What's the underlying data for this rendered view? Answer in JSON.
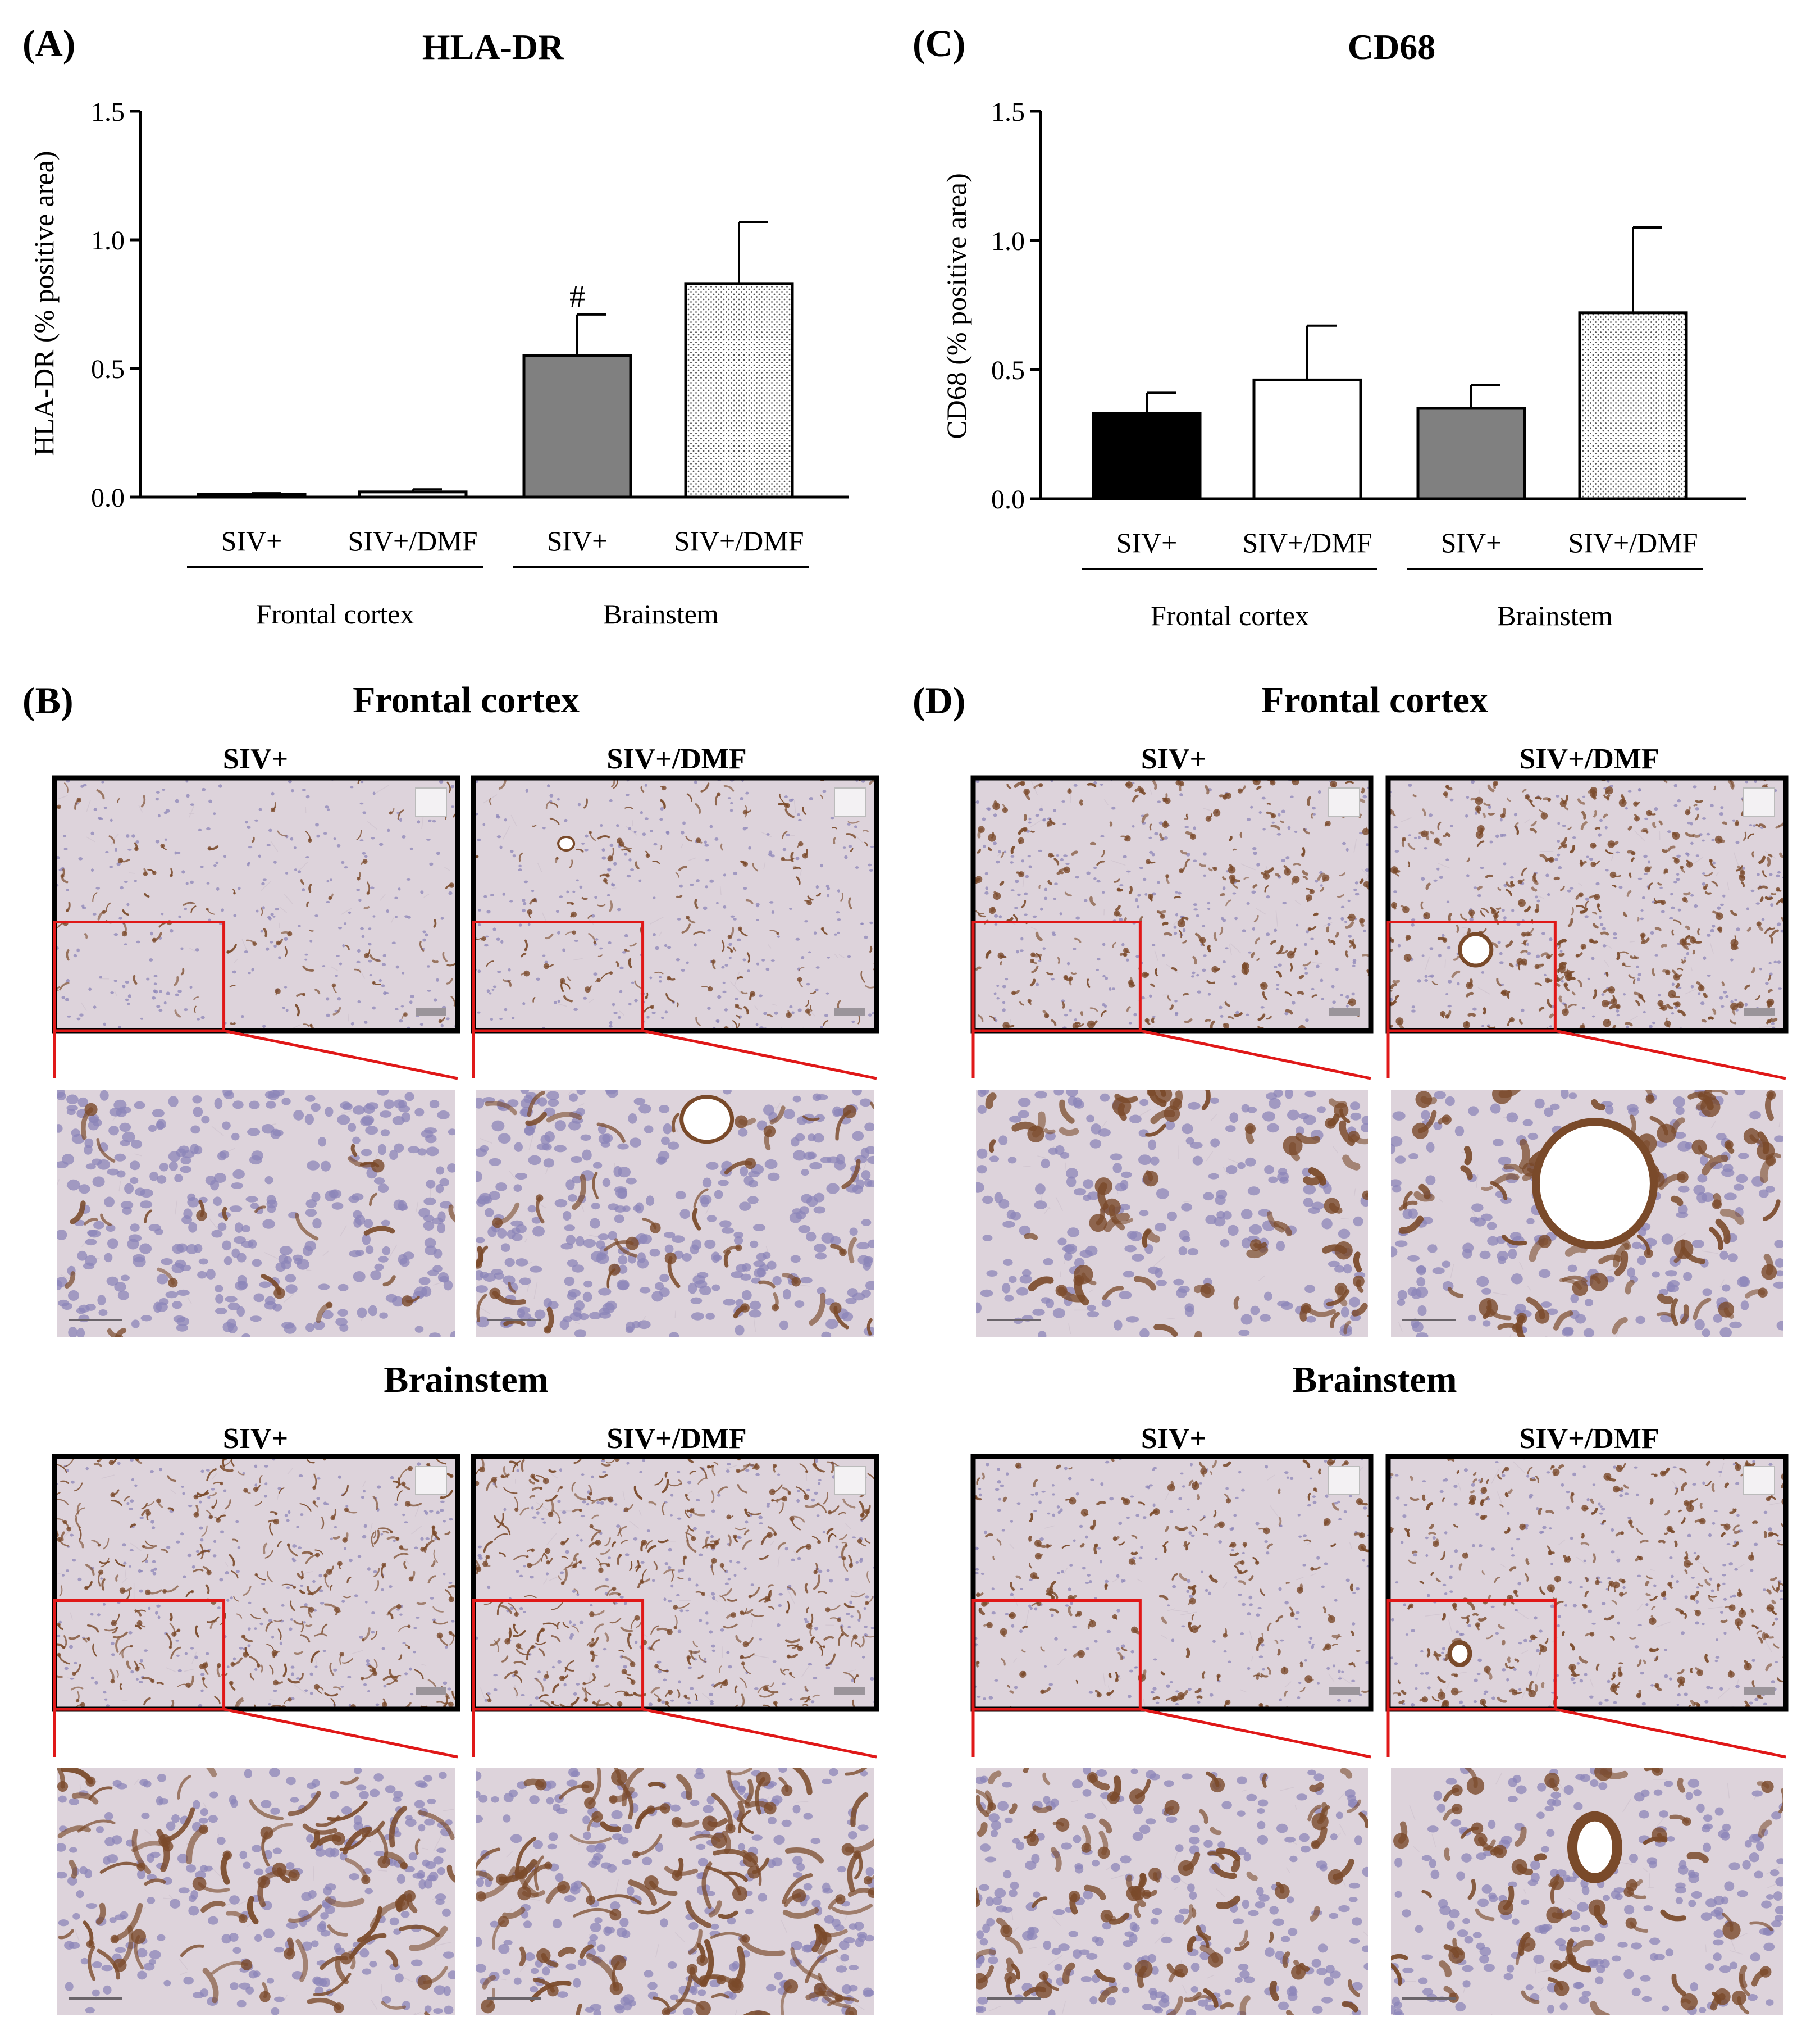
{
  "panels": {
    "A": {
      "letter": "(A)",
      "title": "HLA-DR"
    },
    "B": {
      "letter": "(B)"
    },
    "C": {
      "letter": "(C)",
      "title": "CD68"
    },
    "D": {
      "letter": "(D)"
    }
  },
  "micrographs": {
    "section_frontal": "Frontal cortex",
    "section_brainstem": "Brainstem",
    "label_siv": "SIV+",
    "label_siv_dmf": "SIV+/DMF",
    "stain_colors": {
      "tissue": "#ddd3db",
      "nuclei": "#8c86b8",
      "dab": "#7a4a2a",
      "inset_box": "#e01818"
    }
  },
  "chart_data": [
    {
      "type": "bar",
      "title": "HLA-DR",
      "ylabel": "HLA-DR (% positive area)",
      "xlabel": "",
      "ylim": [
        0,
        1.5
      ],
      "yticks": [
        "0.0",
        "0.5",
        "1.0",
        "1.5"
      ],
      "categories": [
        "SIV+",
        "SIV+/DMF",
        "SIV+",
        "SIV+/DMF"
      ],
      "groups": [
        {
          "name": "Frontal cortex",
          "categories": [
            0,
            1
          ]
        },
        {
          "name": "Brainstem",
          "categories": [
            2,
            3
          ]
        }
      ],
      "values": [
        0.01,
        0.02,
        0.55,
        0.83
      ],
      "errors": [
        0.005,
        0.01,
        0.16,
        0.24
      ],
      "annotations": [
        {
          "category": 2,
          "text": "#"
        }
      ],
      "fills": [
        "black",
        "white",
        "grey",
        "dotted"
      ],
      "grid": false
    },
    {
      "type": "bar",
      "title": "CD68",
      "ylabel": "CD68 (% positive area)",
      "xlabel": "",
      "ylim": [
        0,
        1.5
      ],
      "yticks": [
        "0.0",
        "0.5",
        "1.0",
        "1.5"
      ],
      "categories": [
        "SIV+",
        "SIV+/DMF",
        "SIV+",
        "SIV+/DMF"
      ],
      "groups": [
        {
          "name": "Frontal cortex",
          "categories": [
            0,
            1
          ]
        },
        {
          "name": "Brainstem",
          "categories": [
            2,
            3
          ]
        }
      ],
      "values": [
        0.33,
        0.46,
        0.35,
        0.72
      ],
      "errors": [
        0.08,
        0.21,
        0.09,
        0.33
      ],
      "annotations": [],
      "fills": [
        "black",
        "white",
        "grey",
        "dotted"
      ],
      "grid": false
    }
  ]
}
